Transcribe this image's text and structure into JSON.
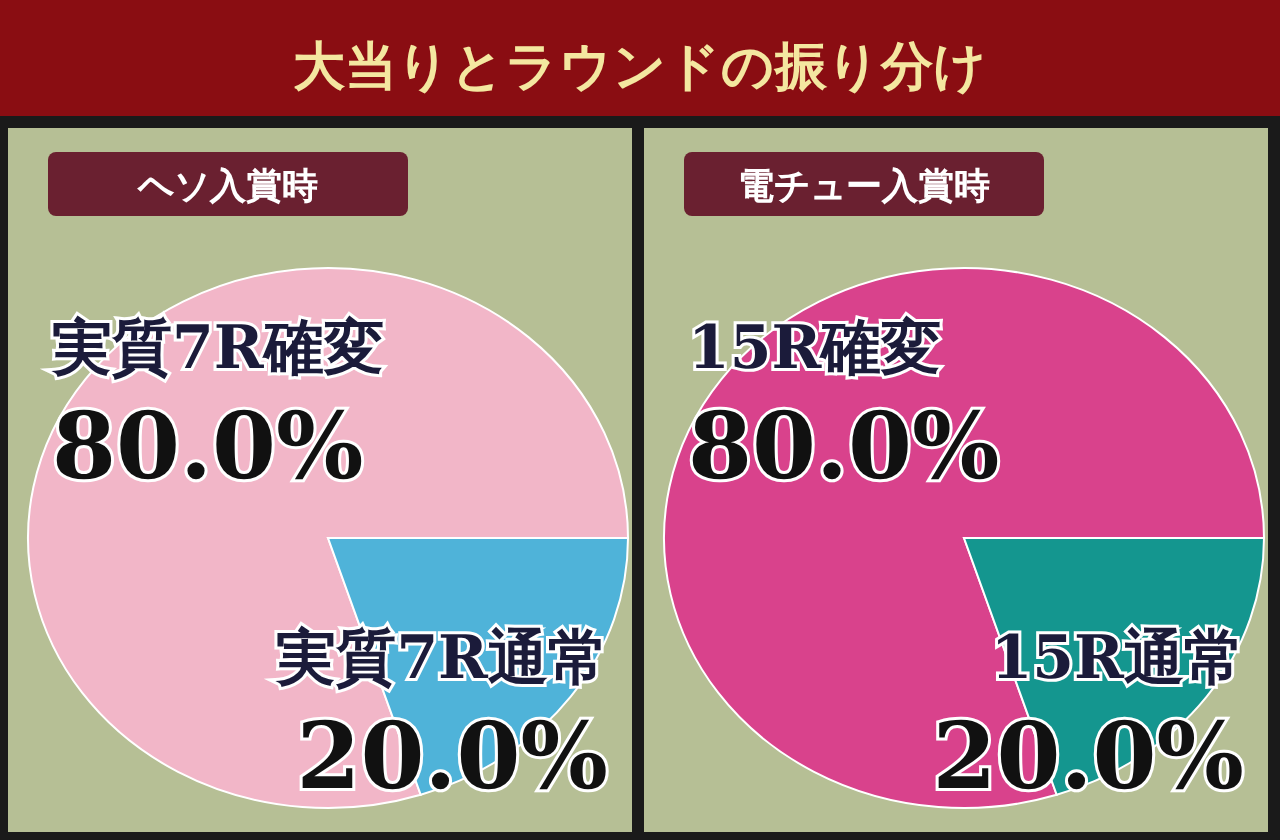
{
  "chart_data": [
    {
      "type": "pie",
      "title": "大当りとラウンドの振り分け",
      "subtitle": "ヘソ入賞時",
      "categories": [
        "実質7R確変",
        "実質7R通常"
      ],
      "values": [
        80,
        20
      ],
      "colors": [
        "#f2b6c8",
        "#4fb3d9"
      ],
      "value_labels": [
        "80.0%",
        "20.0%"
      ]
    },
    {
      "type": "pie",
      "subtitle": "電チュー入賞時",
      "categories": [
        "15R確変",
        "15R通常"
      ],
      "values": [
        80,
        20
      ],
      "colors": [
        "#d9428c",
        "#14968f"
      ],
      "value_labels": [
        "80.0%",
        "20.0%"
      ]
    }
  ]
}
